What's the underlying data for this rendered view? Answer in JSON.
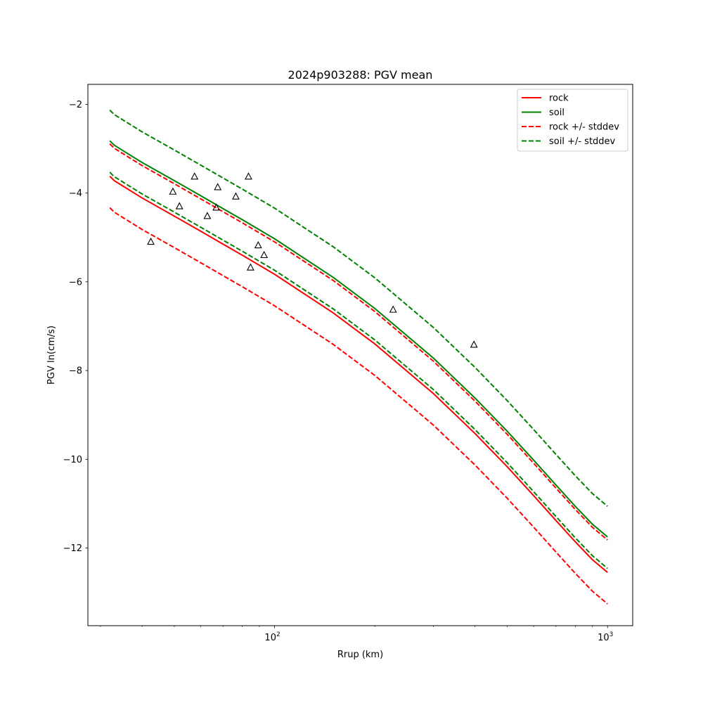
{
  "chart_data": {
    "type": "line",
    "title": "2024p903288: PGV mean",
    "xlabel": "Rrup (km)",
    "ylabel": "PGV ln(cm/s)",
    "x_scale": "log",
    "xlim": [
      27.5,
      1190
    ],
    "ylim": [
      -13.75,
      -1.55
    ],
    "x_ticks": [
      {
        "value": 100,
        "label": "10",
        "exp": "2"
      },
      {
        "value": 1000,
        "label": "10",
        "exp": "3"
      }
    ],
    "y_ticks": [
      {
        "value": -2,
        "label": "−2"
      },
      {
        "value": -4,
        "label": "−4"
      },
      {
        "value": -6,
        "label": "−6"
      },
      {
        "value": -8,
        "label": "−8"
      },
      {
        "value": -10,
        "label": "−10"
      },
      {
        "value": -12,
        "label": "−12"
      }
    ],
    "grid": false,
    "legend_position": "top-right",
    "x": [
      32,
      33,
      35,
      40,
      50,
      60,
      70,
      80,
      100,
      150,
      200,
      300,
      400,
      500,
      600,
      700,
      800,
      900,
      1000
    ],
    "series": [
      {
        "name": "rock",
        "color": "#ff0000",
        "dash": false,
        "values": [
          -3.62,
          -3.72,
          -3.84,
          -4.11,
          -4.52,
          -4.86,
          -5.15,
          -5.4,
          -5.83,
          -6.7,
          -7.4,
          -8.52,
          -9.42,
          -10.17,
          -10.82,
          -11.38,
          -11.86,
          -12.26,
          -12.55
        ]
      },
      {
        "name": "soil",
        "color": "#008000",
        "dash": false,
        "values": [
          -2.82,
          -2.92,
          -3.04,
          -3.31,
          -3.72,
          -4.06,
          -4.35,
          -4.6,
          -5.03,
          -5.9,
          -6.6,
          -7.72,
          -8.62,
          -9.37,
          -10.02,
          -10.58,
          -11.06,
          -11.46,
          -11.75
        ]
      },
      {
        "name": "rock +/- stddev",
        "color": "#ff0000",
        "dash": true,
        "legend": true,
        "values": [
          -2.89,
          -2.99,
          -3.11,
          -3.38,
          -3.79,
          -4.13,
          -4.42,
          -4.67,
          -5.1,
          -5.97,
          -6.67,
          -7.79,
          -8.69,
          -9.44,
          -10.09,
          -10.65,
          -11.13,
          -11.53,
          -11.82
        ]
      },
      {
        "name": "",
        "color": "#ff0000",
        "dash": true,
        "legend": false,
        "values": [
          -4.33,
          -4.43,
          -4.55,
          -4.82,
          -5.23,
          -5.57,
          -5.86,
          -6.11,
          -6.54,
          -7.41,
          -8.11,
          -9.23,
          -10.13,
          -10.88,
          -11.53,
          -12.09,
          -12.57,
          -12.97,
          -13.26
        ]
      },
      {
        "name": "soil +/- stddev",
        "color": "#008000",
        "dash": true,
        "legend": true,
        "values": [
          -2.13,
          -2.23,
          -2.35,
          -2.62,
          -3.03,
          -3.37,
          -3.66,
          -3.91,
          -4.34,
          -5.21,
          -5.91,
          -7.03,
          -7.93,
          -8.68,
          -9.33,
          -9.89,
          -10.37,
          -10.77,
          -11.06
        ]
      },
      {
        "name": "",
        "color": "#008000",
        "dash": true,
        "legend": false,
        "values": [
          -3.53,
          -3.63,
          -3.75,
          -4.02,
          -4.43,
          -4.77,
          -5.06,
          -5.31,
          -5.74,
          -6.61,
          -7.31,
          -8.43,
          -9.33,
          -10.08,
          -10.73,
          -11.29,
          -11.77,
          -12.17,
          -12.46
        ]
      }
    ],
    "observations": {
      "marker": "triangle",
      "points": [
        {
          "x": 42.5,
          "y": -5.1
        },
        {
          "x": 49.5,
          "y": -3.97
        },
        {
          "x": 51.8,
          "y": -4.3
        },
        {
          "x": 57.5,
          "y": -3.63
        },
        {
          "x": 62.8,
          "y": -4.52
        },
        {
          "x": 66.8,
          "y": -4.33
        },
        {
          "x": 67.5,
          "y": -3.87
        },
        {
          "x": 76.5,
          "y": -4.08
        },
        {
          "x": 83.5,
          "y": -3.63
        },
        {
          "x": 84.7,
          "y": -5.68
        },
        {
          "x": 89.3,
          "y": -5.18
        },
        {
          "x": 93.0,
          "y": -5.4
        },
        {
          "x": 227,
          "y": -6.63
        },
        {
          "x": 397,
          "y": -7.42
        }
      ]
    }
  }
}
